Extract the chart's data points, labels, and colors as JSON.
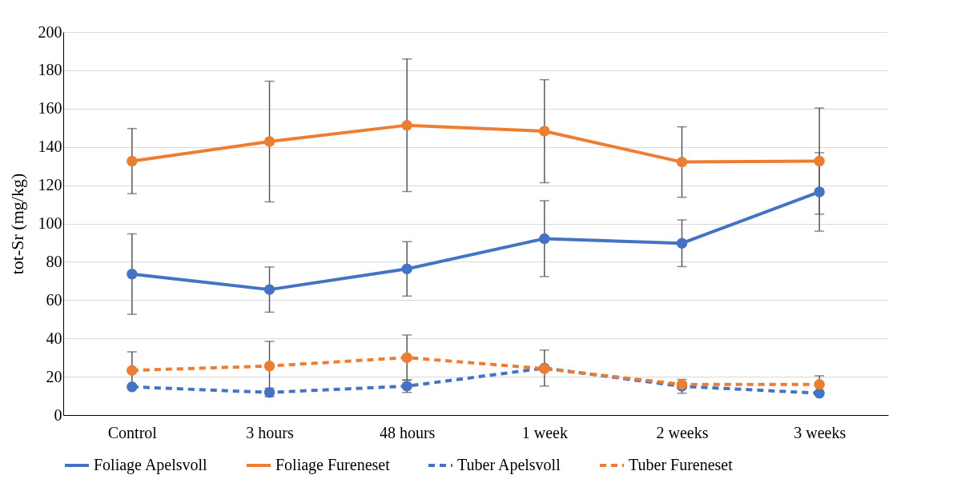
{
  "chart_data": {
    "type": "line",
    "ylabel": "tot-Sr (mg/kg)",
    "categories": [
      "Control",
      "3 hours",
      "48 hours",
      "1 week",
      "2 weeks",
      "3 weeks"
    ],
    "ylim": [
      0,
      200
    ],
    "yticks": [
      0,
      20,
      40,
      60,
      80,
      100,
      120,
      140,
      160,
      180,
      200
    ],
    "grid": "y",
    "legend": "bottom",
    "marker": "circle",
    "series": [
      {
        "name": "Foliage Apelsvoll",
        "color": "#4472c4",
        "line_style": "solid",
        "values": [
          73.6,
          65.5,
          76.3,
          92.1,
          89.7,
          116.5
        ],
        "errors": [
          21,
          11.8,
          14.2,
          19.8,
          12.2,
          20.5
        ]
      },
      {
        "name": "Foliage Fureneset",
        "color": "#ed7d31",
        "line_style": "solid",
        "values": [
          132.6,
          142.8,
          151.3,
          148.2,
          132.1,
          132.6
        ],
        "errors": [
          17,
          31.5,
          34.6,
          26.9,
          18.4,
          27.7
        ]
      },
      {
        "name": "Tuber Apelsvoll",
        "color": "#4472c4",
        "line_style": "dashed",
        "values": [
          14.7,
          11.8,
          15.1,
          24.5,
          15,
          11.4
        ],
        "errors": [
          null,
          2.2,
          3.3,
          9.4,
          3.6,
          null
        ]
      },
      {
        "name": "Tuber Fureneset",
        "color": "#ed7d31",
        "line_style": "dashed",
        "values": [
          23.3,
          25.6,
          30,
          24.2,
          16,
          16
        ],
        "errors": [
          9.7,
          12.9,
          11.8,
          null,
          null,
          4.5
        ]
      }
    ]
  }
}
